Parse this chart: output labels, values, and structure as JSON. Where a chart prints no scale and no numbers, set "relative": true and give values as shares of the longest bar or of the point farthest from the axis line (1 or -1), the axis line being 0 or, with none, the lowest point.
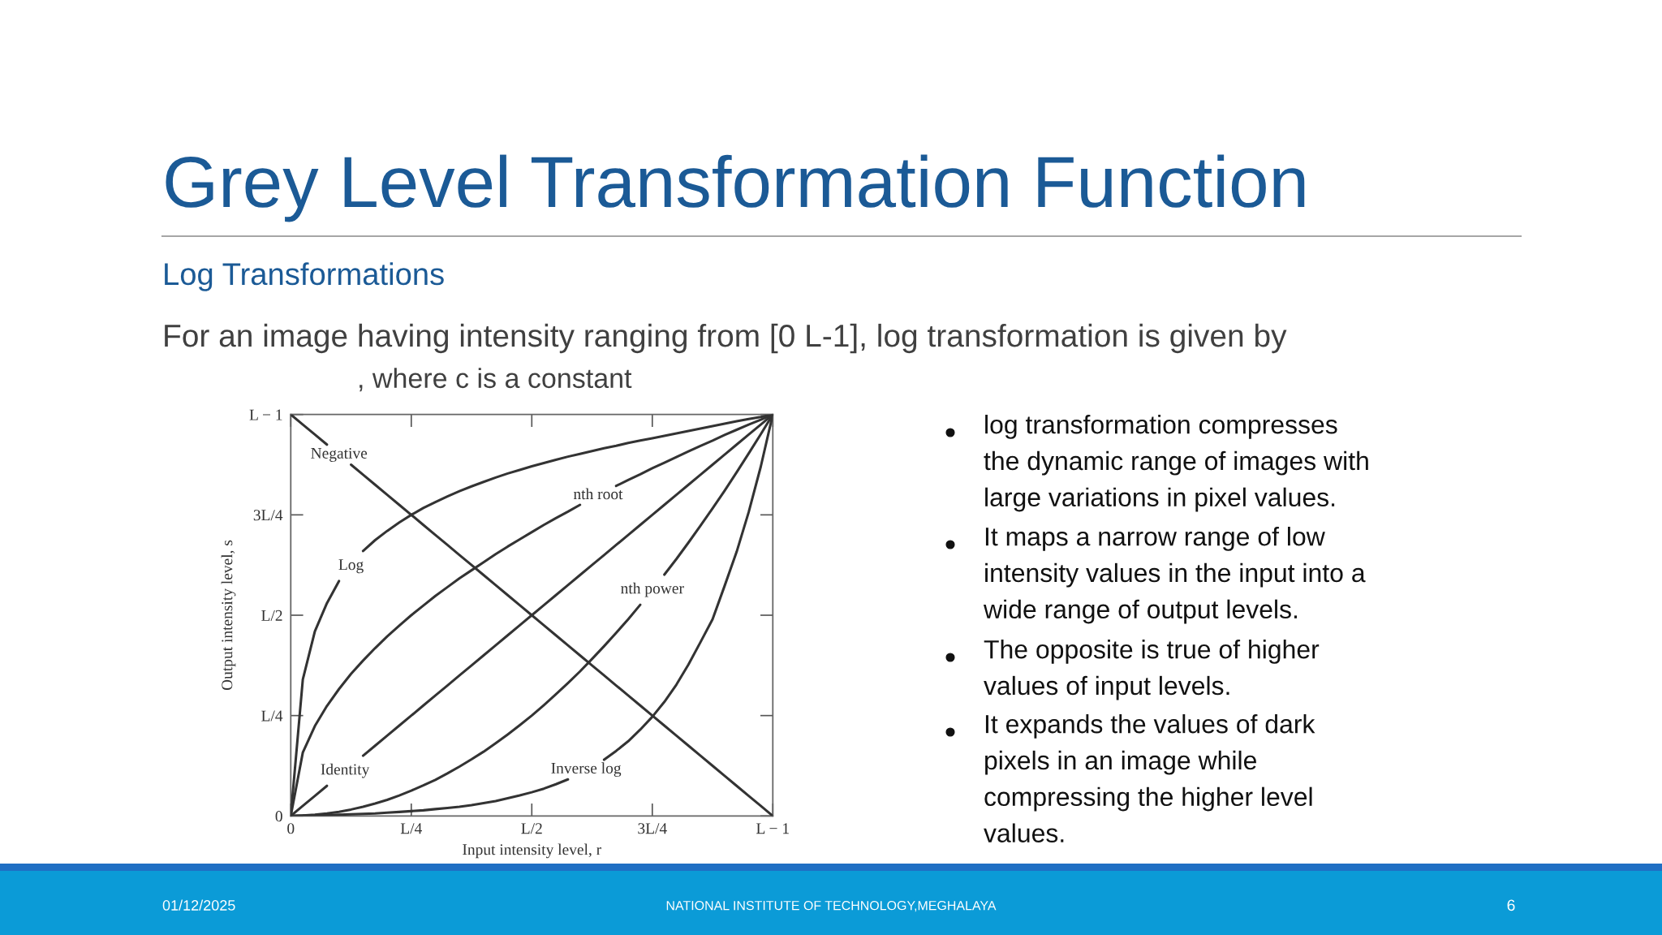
{
  "chart_data": {
    "type": "line",
    "title": "Grey Level Transformation Function",
    "subtitle": "Log Transformations",
    "xlabel": "Input intensity level, r",
    "ylabel": "Output intensity level, s",
    "relative": true,
    "categories": [
      "0",
      null,
      null,
      null,
      null,
      null,
      null,
      null,
      null,
      null,
      "L/4",
      null,
      null,
      null,
      null,
      null,
      null,
      null,
      null,
      null,
      "L/2",
      null,
      null,
      null,
      null,
      null,
      null,
      null,
      null,
      null,
      "3L/4",
      null,
      null,
      null,
      null,
      null,
      null,
      null,
      null,
      null,
      "L − 1"
    ],
    "series": [
      {
        "name": "Negative",
        "color": "#333333",
        "values": [
          1,
          0.975,
          0.95,
          0.925,
          null,
          0.875,
          0.85,
          0.825,
          0.8,
          0.775,
          0.75,
          0.725,
          0.7,
          0.675,
          0.65,
          0.625,
          0.6,
          0.575,
          0.55,
          0.525,
          0.5,
          0.475,
          0.45,
          0.425,
          0.4,
          0.375,
          0.35,
          0.325,
          0.3,
          0.275,
          0.25,
          0.225,
          0.2,
          0.175,
          0.15,
          0.125,
          0.1,
          0.075,
          0.05,
          0.025,
          0
        ]
      },
      {
        "name": "Log",
        "color": "#333333",
        "values": [
          0,
          0.34,
          0.46,
          0.53,
          0.585,
          null,
          0.66,
          0.687,
          0.71,
          0.731,
          0.75,
          0.767,
          0.782,
          0.796,
          0.809,
          0.821,
          0.832,
          0.843,
          0.853,
          0.862,
          0.871,
          0.879,
          0.887,
          0.895,
          0.902,
          0.909,
          0.916,
          0.922,
          0.929,
          0.935,
          0.941,
          0.947,
          0.953,
          0.959,
          0.965,
          0.971,
          0.977,
          0.983,
          0.989,
          0.994,
          1
        ]
      },
      {
        "name": "nth root",
        "color": "#333333",
        "values": [
          0,
          0.158,
          0.224,
          0.274,
          0.316,
          0.354,
          0.387,
          0.418,
          0.447,
          0.474,
          0.5,
          0.524,
          0.548,
          0.57,
          0.592,
          0.612,
          0.632,
          0.652,
          0.671,
          0.689,
          0.707,
          0.725,
          0.742,
          0.758,
          0.775,
          null,
          null,
          0.822,
          0.837,
          0.851,
          0.866,
          0.88,
          0.894,
          0.908,
          0.922,
          0.935,
          0.949,
          0.962,
          0.975,
          0.987,
          1
        ]
      },
      {
        "name": "Identity",
        "color": "#333333",
        "values": [
          0,
          0.025,
          0.05,
          0.075,
          null,
          null,
          0.15,
          0.175,
          0.2,
          0.225,
          0.25,
          0.275,
          0.3,
          0.325,
          0.35,
          0.375,
          0.4,
          0.425,
          0.45,
          0.475,
          0.5,
          0.525,
          0.55,
          0.575,
          0.6,
          0.625,
          0.65,
          0.675,
          0.7,
          0.725,
          0.75,
          0.775,
          0.8,
          0.825,
          0.85,
          0.875,
          0.9,
          0.925,
          0.95,
          0.975,
          1
        ]
      },
      {
        "name": "nth power",
        "color": "#333333",
        "values": [
          0,
          0.001,
          0.003,
          0.006,
          0.01,
          0.016,
          0.023,
          0.031,
          0.04,
          0.051,
          0.063,
          0.076,
          0.09,
          0.106,
          0.123,
          0.141,
          0.16,
          0.181,
          0.203,
          0.226,
          0.25,
          0.276,
          0.303,
          0.331,
          0.36,
          0.391,
          0.423,
          0.456,
          0.49,
          0.526,
          null,
          0.601,
          0.64,
          0.681,
          0.723,
          0.766,
          0.81,
          0.856,
          0.903,
          0.951,
          1
        ]
      },
      {
        "name": "Inverse log",
        "color": "#333333",
        "values": [
          0,
          0.001,
          0.001,
          0.002,
          0.003,
          0.004,
          0.005,
          0.006,
          0.008,
          0.01,
          0.012,
          0.014,
          0.017,
          0.02,
          0.023,
          0.027,
          0.032,
          0.037,
          0.044,
          0.051,
          0.059,
          0.068,
          0.079,
          0.091,
          null,
          null,
          0.14,
          0.162,
          0.186,
          0.215,
          0.247,
          0.284,
          0.327,
          0.377,
          0.433,
          0.49,
          0.573,
          0.658,
          0.757,
          0.87,
          1
        ]
      }
    ],
    "annotations": [
      "For an image having intensity ranging from [0 L-1], log transformation is given by",
      ", where c is a constant",
      "log transformation compresses the dynamic range of images with large variations in pixel values.",
      "It maps a narrow range of low intensity values in the input into a wide range of output levels.",
      "The opposite is true of higher values of input levels.",
      "It expands the values of dark pixels in an image while compressing the higher level values.",
      "01/12/2025",
      "NATIONAL INSTITUTE OF TECHNOLOGY,MEGHALAYA",
      "6",
      "0",
      "L/4",
      "L/2",
      "3L/4",
      "L − 1"
    ]
  }
}
